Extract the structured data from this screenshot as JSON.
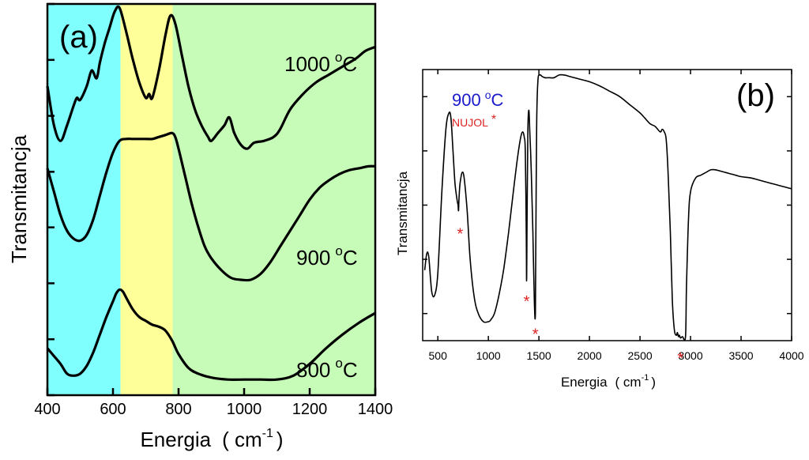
{
  "chart_data": [
    {
      "type": "line",
      "panel_label": "(a)",
      "xlabel": "Energia",
      "xlabel_unit_open": "( cm",
      "xlabel_unit_exp": "-1",
      "xlabel_unit_close": ")",
      "ylabel": "Transmitancja",
      "xlim": [
        400,
        1400
      ],
      "ylim": [
        0,
        100
      ],
      "x_ticks": [
        400,
        600,
        800,
        1000,
        1200,
        1400
      ],
      "x_tick_labels": [
        "400",
        "600",
        "800",
        "1000",
        "1200",
        "1400"
      ],
      "y_tick_values": [
        0,
        14.3,
        28.6,
        42.9,
        57.1,
        71.4,
        85.7,
        100
      ],
      "y_tick_labels_shown": false,
      "bands": [
        {
          "name": "band-1",
          "from": 400,
          "to": 623,
          "color": "#80ffff"
        },
        {
          "name": "band-2",
          "from": 623,
          "to": 782,
          "color": "#ffff99"
        },
        {
          "name": "band-3",
          "from": 782,
          "to": 1400,
          "color": "#c6fcb8"
        }
      ],
      "series": [
        {
          "name": "1000 °C",
          "label_value": "1000",
          "label_sup": "o",
          "label_unit": "C",
          "color": "#000000",
          "x": [
            400,
            420,
            440,
            460,
            480,
            490,
            500,
            520,
            535,
            550,
            560,
            575,
            590,
            605,
            620,
            640,
            660,
            680,
            700,
            710,
            720,
            740,
            760,
            775,
            790,
            810,
            830,
            850,
            870,
            890,
            900,
            920,
            940,
            955,
            970,
            990,
            1010,
            1030,
            1060,
            1090,
            1110,
            1140,
            1180,
            1220,
            1260,
            1300,
            1340,
            1370,
            1400
          ],
          "y": [
            79,
            69,
            65,
            69,
            74,
            76,
            75.5,
            79,
            83,
            81,
            85,
            90,
            94,
            98,
            99,
            93,
            86,
            80,
            76,
            77,
            76,
            83,
            92,
            97,
            95,
            87,
            79,
            73,
            69,
            66,
            65,
            67,
            69,
            71,
            67,
            64,
            63,
            64.5,
            65,
            66,
            68,
            73,
            77,
            80,
            82,
            84,
            86,
            88,
            89
          ]
        },
        {
          "name": "900 °C",
          "label_value": "900",
          "label_sup": "o",
          "label_unit": "C",
          "color": "#000000",
          "x": [
            400,
            420,
            440,
            460,
            480,
            500,
            520,
            540,
            560,
            580,
            600,
            620,
            640,
            660,
            680,
            700,
            720,
            740,
            760,
            780,
            790,
            800,
            820,
            840,
            860,
            880,
            900,
            930,
            960,
            990,
            1020,
            1050,
            1080,
            1110,
            1140,
            1170,
            1200,
            1230,
            1260,
            1290,
            1320,
            1350,
            1380,
            1400
          ],
          "y": [
            58,
            52,
            46,
            42,
            40,
            39.5,
            41,
            45,
            51,
            57,
            62,
            65,
            65.5,
            65.5,
            65.5,
            65.5,
            65.5,
            66,
            66.5,
            67,
            66,
            63,
            56,
            49,
            43,
            38,
            35,
            32,
            30,
            29.5,
            29.5,
            31,
            34,
            38,
            42,
            46,
            50,
            53,
            55,
            56.5,
            57.5,
            58,
            58.5,
            58.5
          ]
        },
        {
          "name": "800 °C",
          "label_value": "800",
          "label_sup": "o",
          "label_unit": "C",
          "color": "#000000",
          "x": [
            400,
            420,
            440,
            460,
            480,
            500,
            520,
            540,
            560,
            580,
            600,
            610,
            620,
            630,
            640,
            660,
            680,
            700,
            720,
            740,
            760,
            780,
            800,
            830,
            860,
            900,
            950,
            1000,
            1050,
            1100,
            1150,
            1200,
            1250,
            1300,
            1350,
            1400
          ],
          "y": [
            12,
            10,
            8,
            5.5,
            5,
            5.5,
            7.5,
            11,
            15.5,
            20,
            24,
            26,
            27,
            26.5,
            25,
            22,
            20,
            19,
            18,
            17.5,
            16.5,
            14,
            10.5,
            7,
            5.5,
            4.5,
            4,
            4,
            4,
            4,
            5,
            8,
            12,
            15.5,
            18.5,
            21
          ]
        }
      ]
    },
    {
      "type": "line",
      "panel_label": "(b)",
      "xlabel": "Energia",
      "xlabel_unit_open": "( cm",
      "xlabel_unit_exp": "-1",
      "xlabel_unit_close": ")",
      "ylabel": "Transmitancja",
      "xlim": [
        350,
        4000
      ],
      "ylim": [
        0,
        100
      ],
      "x_ticks": [
        500,
        1000,
        1500,
        2000,
        2500,
        3000,
        3500,
        4000
      ],
      "x_tick_labels": [
        "500",
        "1000",
        "1500",
        "2000",
        "2500",
        "3000",
        "3500",
        "4000"
      ],
      "y_tick_values": [
        10,
        30,
        50,
        70,
        90
      ],
      "y_tick_labels_shown": false,
      "legend": {
        "title_value": "900",
        "title_sup": "o",
        "title_unit": "C",
        "title_color": "#1a1acc",
        "note": "NUJOL",
        "note_mark": "*",
        "note_color": "#dd2222"
      },
      "series": [
        {
          "name": "900 °C (NUJOL)",
          "color": "#000000",
          "x": [
            370,
            390,
            410,
            440,
            470,
            500,
            540,
            580,
            610,
            630,
            650,
            670,
            690,
            700,
            705,
            710,
            720,
            740,
            760,
            790,
            820,
            860,
            900,
            950,
            1000,
            1020,
            1060,
            1100,
            1150,
            1200,
            1250,
            1290,
            1320,
            1340,
            1355,
            1365,
            1375,
            1378,
            1382,
            1390,
            1400,
            1410,
            1425,
            1440,
            1455,
            1465,
            1470,
            1478,
            1490,
            1510,
            1530,
            1560,
            1600,
            1650,
            1700,
            1750,
            1800,
            1900,
            2000,
            2100,
            2200,
            2300,
            2400,
            2500,
            2550,
            2600,
            2650,
            2700,
            2720,
            2740,
            2760,
            2780,
            2800,
            2820,
            2840,
            2860,
            2870,
            2880,
            2890,
            2900,
            2920,
            2950,
            2960,
            2980,
            3000,
            3050,
            3100,
            3150,
            3200,
            3250,
            3300,
            3350,
            3400,
            3450,
            3500,
            3600,
            3700,
            3800,
            3900,
            4000
          ],
          "y": [
            26,
            32,
            31,
            18,
            17,
            25,
            55,
            78,
            84,
            82,
            70,
            58,
            52,
            50,
            48,
            53,
            58,
            62,
            60,
            48,
            30,
            16,
            10,
            7,
            7,
            7.5,
            10,
            16,
            26,
            40,
            56,
            68,
            75,
            77,
            75,
            70,
            40,
            22,
            40,
            76,
            85,
            77,
            62,
            40,
            14,
            10,
            40,
            80,
            96,
            98,
            97.5,
            97,
            97,
            97,
            98,
            98,
            97.5,
            96.5,
            95.5,
            94,
            92,
            90,
            87,
            84,
            82,
            80,
            79,
            77,
            78,
            77,
            74,
            60,
            40,
            15,
            4,
            2,
            3,
            1.5,
            2,
            1,
            1.5,
            1.5,
            20,
            45,
            55,
            60,
            61,
            62,
            63,
            63,
            62.5,
            62,
            61.5,
            61,
            60.5,
            60,
            59,
            58,
            57,
            56
          ]
        }
      ],
      "annotations": [
        {
          "name": "nujol-star-720",
          "text": "*",
          "x": 720,
          "y": 41
        },
        {
          "name": "nujol-star-1378",
          "text": "*",
          "x": 1378,
          "y": 16
        },
        {
          "name": "nujol-star-1465",
          "text": "*",
          "x": 1465,
          "y": 4
        },
        {
          "name": "nujol-star-2900",
          "text": "*",
          "x": 2900,
          "y": -5
        }
      ]
    }
  ]
}
